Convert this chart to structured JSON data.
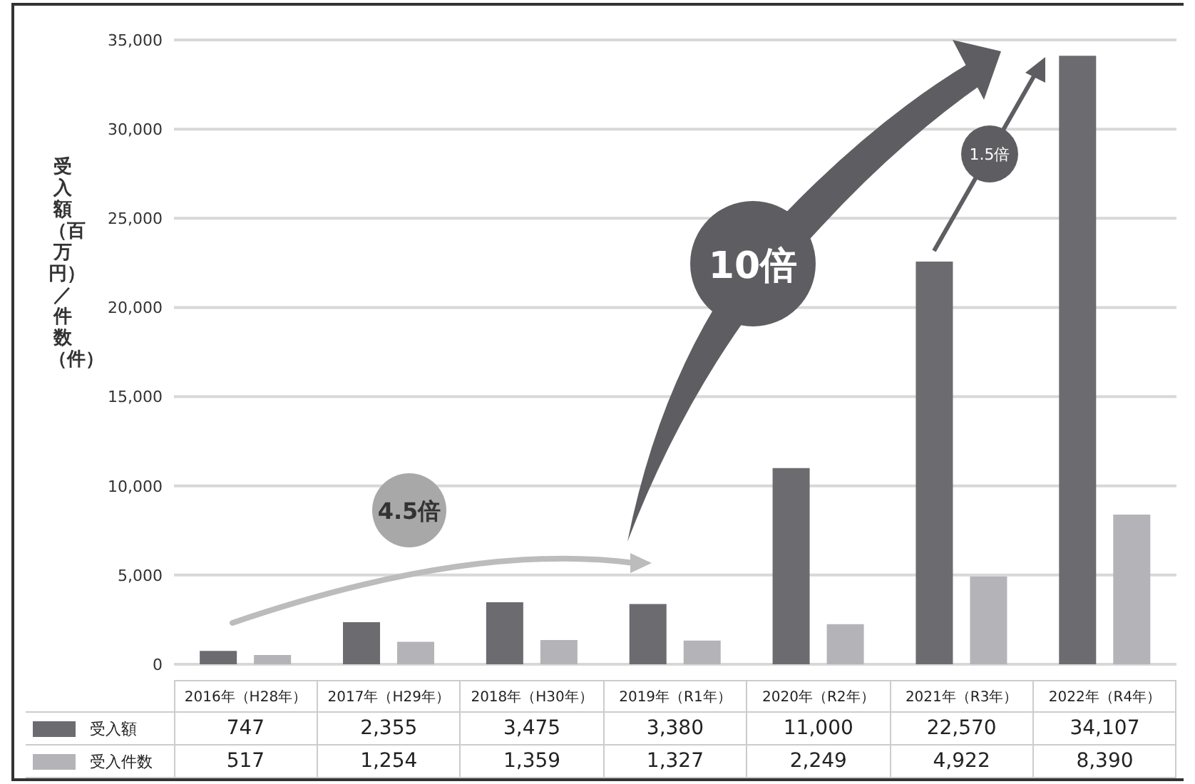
{
  "chart_data": {
    "type": "bar",
    "ylabel": "受入額（百万円）／件数（件）",
    "categories": [
      "2016年（H28年）",
      "2017年（H29年）",
      "2018年（H30年）",
      "2019年（R1年）",
      "2020年（R2年）",
      "2021年（R3年）",
      "2022年（R4年）"
    ],
    "series": [
      {
        "name": "受入額",
        "color": "#6b6b70",
        "values": [
          747,
          2355,
          3475,
          3380,
          11000,
          22570,
          34107
        ],
        "value_labels": [
          "747",
          "2,355",
          "3,475",
          "3,380",
          "11,000",
          "22,570",
          "34,107"
        ]
      },
      {
        "name": "受入件数",
        "color": "#b4b4b8",
        "values": [
          517,
          1254,
          1359,
          1327,
          2249,
          4922,
          8390
        ],
        "value_labels": [
          "517",
          "1,254",
          "1,359",
          "1,327",
          "2,249",
          "4,922",
          "8,390"
        ]
      }
    ],
    "ylim": [
      0,
      35000
    ],
    "yticks": [
      {
        "value": 0,
        "label": "0"
      },
      {
        "value": 5000,
        "label": "5,000"
      },
      {
        "value": 10000,
        "label": "10,000"
      },
      {
        "value": 15000,
        "label": "15,000"
      },
      {
        "value": 20000,
        "label": "20,000"
      },
      {
        "value": 25000,
        "label": "25,000"
      },
      {
        "value": 30000,
        "label": "30,000"
      },
      {
        "value": 35000,
        "label": "35,000"
      }
    ],
    "grid": "y",
    "legend": "bottom",
    "annotations": [
      "4.5倍",
      "10倍",
      "1.5倍"
    ]
  }
}
